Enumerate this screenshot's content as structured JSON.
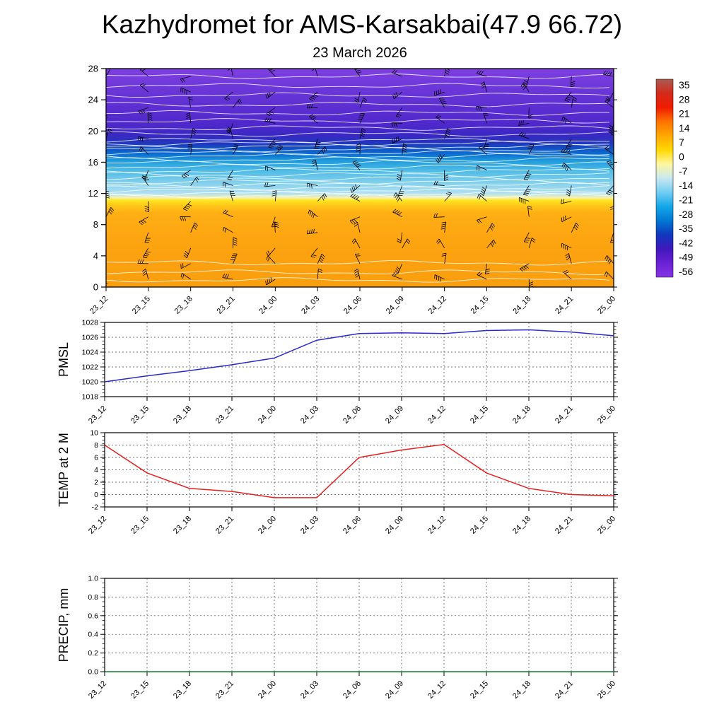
{
  "page": {
    "title": "Kazhydromet for AMS-Karsakbai(47.9 66.72)",
    "subtitle": "23 March 2026"
  },
  "time_axis": {
    "labels": [
      "23_12",
      "23_15",
      "23_18",
      "23_21",
      "24_00",
      "24_03",
      "24_06",
      "24_09",
      "24_12",
      "24_15",
      "24_18",
      "24_21",
      "25_00"
    ]
  },
  "chart_data": [
    {
      "type": "heatmap",
      "name": "temperature-cross-section",
      "title": "23 March 2026",
      "x_labels": [
        "23_12",
        "23_15",
        "23_18",
        "23_21",
        "24_00",
        "24_03",
        "24_06",
        "24_09",
        "24_12",
        "24_15",
        "24_18",
        "24_21",
        "25_00"
      ],
      "ylim": [
        0,
        28
      ],
      "yticks": [
        0,
        4,
        8,
        12,
        16,
        20,
        24,
        28
      ],
      "overlay": "black wind barbs at all levels and thin white temperature contour lines",
      "gradient": [
        {
          "h": 0,
          "color": "#F99E0E"
        },
        {
          "h": 6,
          "color": "#FDA411"
        },
        {
          "h": 9.5,
          "color": "#FFAF14"
        },
        {
          "h": 10.4,
          "color": "#FFC61A"
        },
        {
          "h": 11.1,
          "color": "#FFE51E"
        },
        {
          "h": 11.45,
          "color": "#F6F2AE"
        },
        {
          "h": 12,
          "color": "#AFE0F2"
        },
        {
          "h": 13.5,
          "color": "#7FCEEC"
        },
        {
          "h": 15,
          "color": "#4CBAE6"
        },
        {
          "h": 16.2,
          "color": "#1F9BDC"
        },
        {
          "h": 17,
          "color": "#0C70D0"
        },
        {
          "h": 17.8,
          "color": "#1150C4"
        },
        {
          "h": 18.5,
          "color": "#2334BC"
        },
        {
          "h": 19.5,
          "color": "#3A28C4"
        },
        {
          "h": 21,
          "color": "#5128CC"
        },
        {
          "h": 24,
          "color": "#6232D4"
        },
        {
          "h": 28,
          "color": "#7E3FE0"
        }
      ],
      "colorbar": {
        "labels": [
          35,
          28,
          21,
          14,
          7,
          0,
          -7,
          -14,
          -21,
          -28,
          -35,
          -42,
          -49,
          -56
        ],
        "colors": [
          "#A85C54",
          "#D42A1A",
          "#F01C00",
          "#FF7300",
          "#FFA800",
          "#FFD800",
          "#FFF7A0",
          "#C9E8F0",
          "#72CDF2",
          "#14A8E8",
          "#0078D2",
          "#1038BE",
          "#4018BC",
          "#6A20D4",
          "#8535E5"
        ]
      },
      "estimated_profile_h_vs_tempC": [
        [
          0,
          8
        ],
        [
          4,
          0
        ],
        [
          8,
          -8
        ],
        [
          10,
          -11
        ],
        [
          11,
          -13
        ],
        [
          12,
          -17
        ],
        [
          13,
          -22
        ],
        [
          14,
          -26
        ],
        [
          15,
          -31
        ],
        [
          16,
          -37
        ],
        [
          17,
          -43
        ],
        [
          18,
          -49
        ],
        [
          19,
          -53
        ],
        [
          20,
          -56
        ],
        [
          24,
          -58
        ],
        [
          28,
          -55
        ]
      ]
    },
    {
      "type": "line",
      "name": "pmsl",
      "ylabel": "PMSL",
      "color": "#2A2AC8",
      "ylim": [
        1018,
        1028
      ],
      "yticks": [
        1018,
        1020,
        1022,
        1024,
        1026,
        1028
      ],
      "x_labels": [
        "23_12",
        "23_15",
        "23_18",
        "23_21",
        "24_00",
        "24_03",
        "24_06",
        "24_09",
        "24_12",
        "24_15",
        "24_18",
        "24_21",
        "25_00"
      ],
      "values": [
        1020.0,
        1020.8,
        1021.5,
        1022.3,
        1023.2,
        1025.6,
        1026.5,
        1026.6,
        1026.5,
        1026.9,
        1027.0,
        1026.7,
        1026.2
      ]
    },
    {
      "type": "line",
      "name": "temp-2m",
      "ylabel": "TEMP at 2 M",
      "color": "#E62020",
      "ylim": [
        -2,
        10
      ],
      "yticks": [
        -2,
        0,
        2,
        4,
        6,
        8,
        10
      ],
      "x_labels": [
        "23_12",
        "23_15",
        "23_18",
        "23_21",
        "24_00",
        "24_03",
        "24_06",
        "24_09",
        "24_12",
        "24_15",
        "24_18",
        "24_21",
        "25_00"
      ],
      "values": [
        8.0,
        3.5,
        1.0,
        0.5,
        -0.5,
        -0.5,
        6.0,
        7.2,
        8.1,
        3.5,
        1.0,
        0.0,
        -0.2
      ]
    },
    {
      "type": "line",
      "name": "precip",
      "ylabel": "PRECIP, mm",
      "color": "#1E8C3C",
      "ylim": [
        0,
        1
      ],
      "yticks": [
        0.0,
        0.2,
        0.4,
        0.6,
        0.8,
        1.0
      ],
      "ytick_labels": [
        "0.0",
        "0.2",
        "0.4",
        "0.6",
        "0.8",
        "1.0"
      ],
      "x_labels": [
        "23_12",
        "23_15",
        "23_18",
        "23_21",
        "24_00",
        "24_03",
        "24_06",
        "24_09",
        "24_12",
        "24_15",
        "24_18",
        "24_21",
        "25_00"
      ],
      "values": [
        0,
        0,
        0,
        0,
        0,
        0,
        0,
        0,
        0,
        0,
        0,
        0,
        0
      ]
    }
  ]
}
